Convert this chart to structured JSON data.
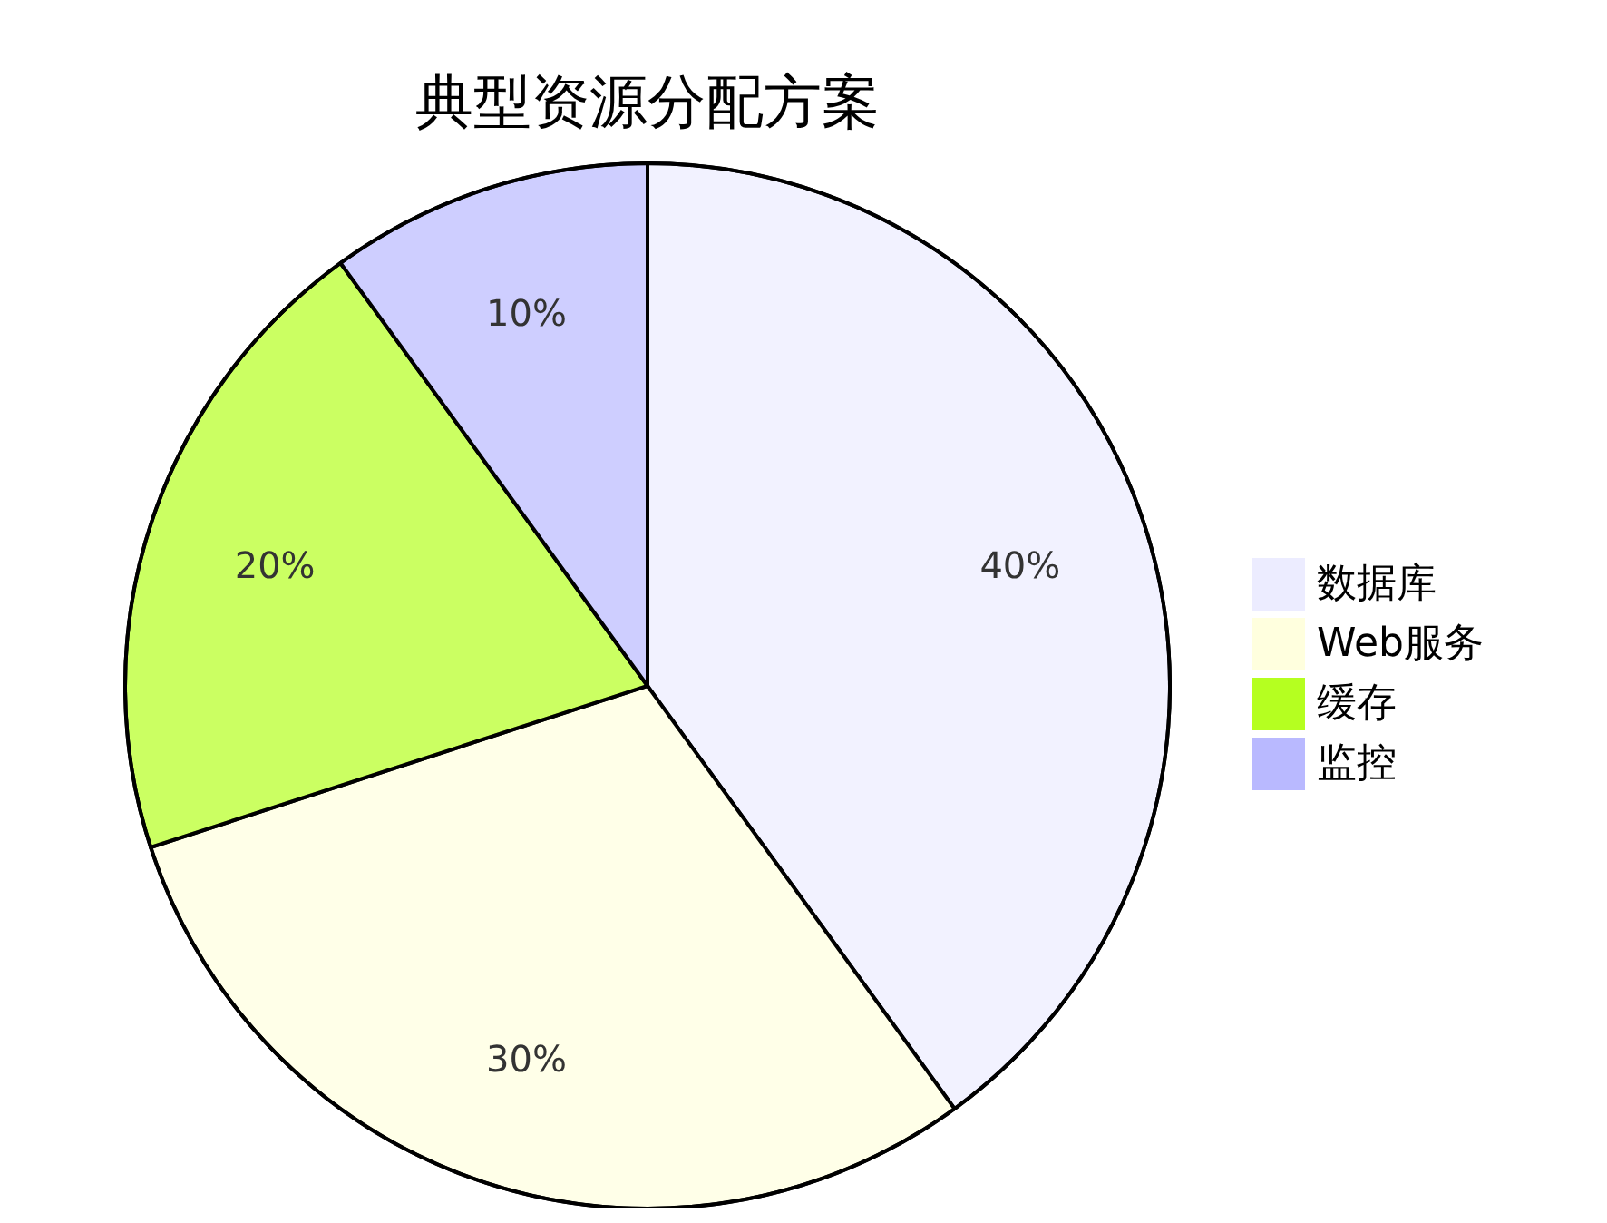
{
  "chart_data": {
    "type": "pie",
    "title": "典型资源分配方案",
    "categories": [
      "数据库",
      "Web服务",
      "缓存",
      "监控"
    ],
    "values": [
      40,
      30,
      20,
      10
    ],
    "colors": [
      "#ececff",
      "#ffffde",
      "#b5ff20",
      "#b9b9ff"
    ],
    "value_labels": [
      "40%",
      "30%",
      "20%",
      "10%"
    ],
    "legend": "right"
  }
}
